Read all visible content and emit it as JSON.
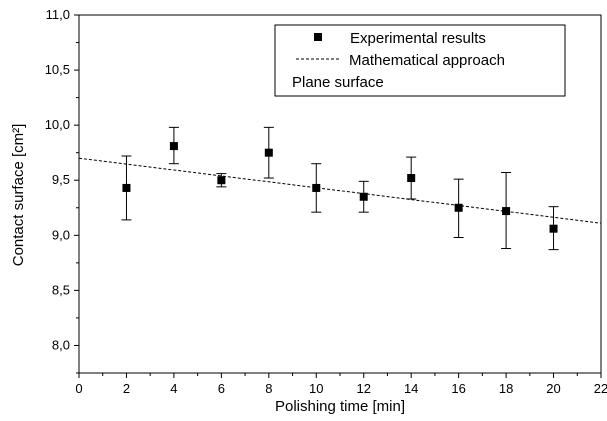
{
  "chart_data": {
    "type": "scatter",
    "xlabel": "Polishing time [min]",
    "ylabel": "Contact surface [cm²]",
    "xlim": [
      0,
      22
    ],
    "ylim": [
      7.75,
      11.0
    ],
    "xticks": [
      0,
      2,
      4,
      6,
      8,
      10,
      12,
      14,
      16,
      18,
      20,
      22
    ],
    "xtick_labels": [
      "0",
      "2",
      "4",
      "6",
      "8",
      "10",
      "12",
      "14",
      "16",
      "18",
      "20",
      "22"
    ],
    "yticks": [
      8.0,
      8.5,
      9.0,
      9.5,
      10.0,
      10.5,
      11.0
    ],
    "ytick_labels": [
      "8,0",
      "8,5",
      "9,0",
      "9,5",
      "10,0",
      "10,5",
      "11,0"
    ],
    "grid": false,
    "legend_position": "top-right",
    "legend_entries": [
      "Experimental results",
      "Mathematical approach",
      "Plane surface"
    ],
    "series": [
      {
        "name": "Experimental results",
        "kind": "scatter-with-error-bars",
        "x": [
          2,
          4,
          6,
          8,
          10,
          12,
          14,
          16,
          18,
          20
        ],
        "y": [
          9.43,
          9.81,
          9.5,
          9.75,
          9.43,
          9.35,
          9.52,
          9.25,
          9.22,
          9.06
        ],
        "err_low": [
          9.14,
          9.65,
          9.44,
          9.52,
          9.21,
          9.21,
          9.33,
          8.98,
          8.88,
          8.87
        ],
        "err_high": [
          9.72,
          9.98,
          9.56,
          9.98,
          9.65,
          9.49,
          9.71,
          9.51,
          9.57,
          9.26
        ],
        "color": "#000000"
      },
      {
        "name": "Mathematical approach",
        "kind": "dashed-line",
        "x": [
          0,
          22
        ],
        "y": [
          9.7,
          9.11
        ],
        "color": "#000000"
      }
    ]
  }
}
